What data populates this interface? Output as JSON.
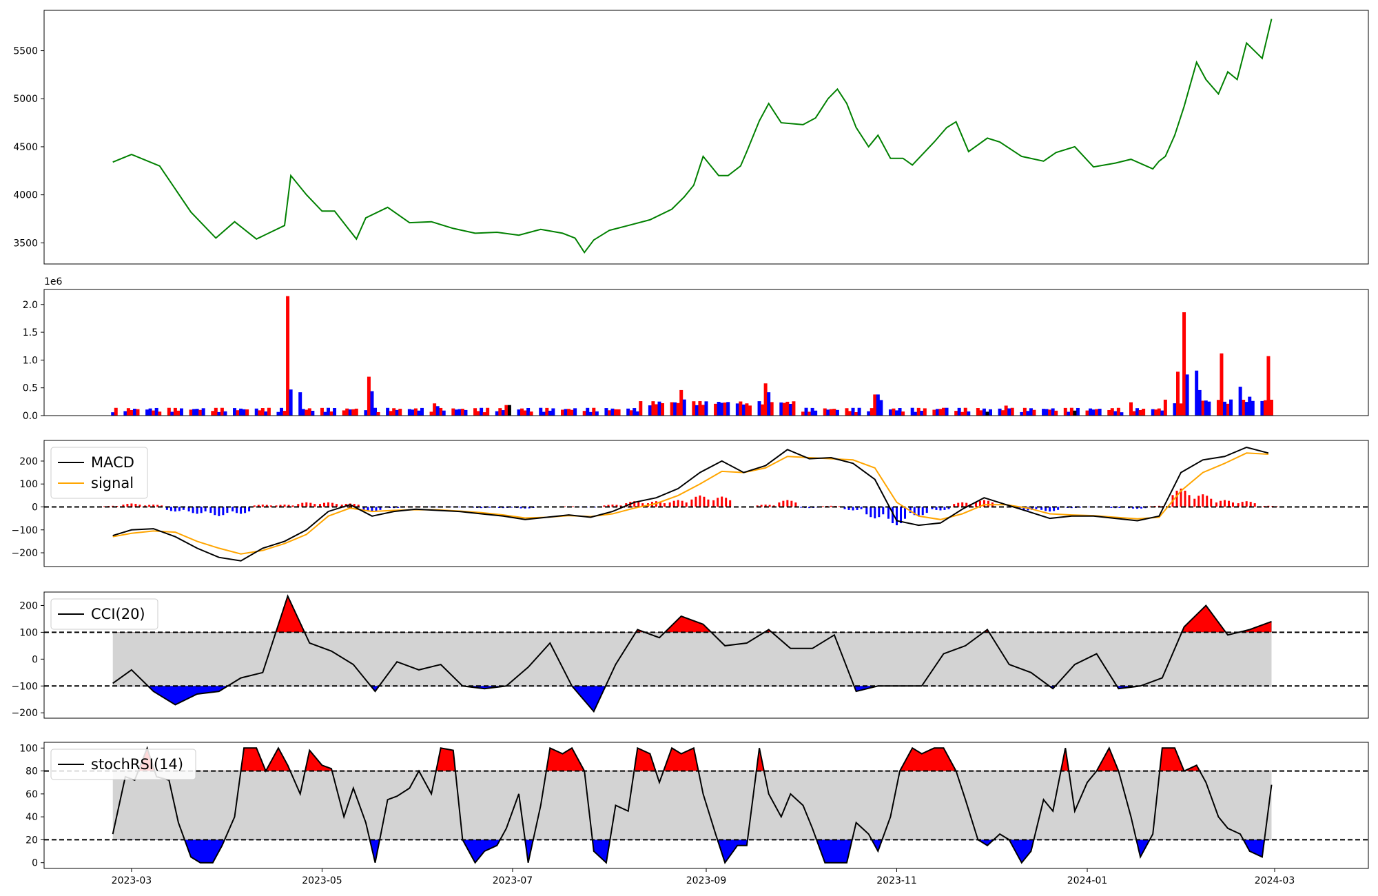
{
  "x_axis": {
    "ticks": [
      "2023-03",
      "2023-05",
      "2023-07",
      "2023-09",
      "2023-11",
      "2024-01",
      "2024-03"
    ],
    "tick_dates": [
      "2023-03-01",
      "2023-05-01",
      "2023-07-01",
      "2023-09-01",
      "2023-11-01",
      "2024-01-01",
      "2024-03-01"
    ],
    "range": [
      "2023-02-01",
      "2024-03-31"
    ]
  },
  "colors": {
    "price": "#008000",
    "up": "#ff0000",
    "down": "#0000ff",
    "flat": "#000000",
    "line": "#000000",
    "signal": "#ffa500",
    "band": "#d3d3d3"
  },
  "chart_data": [
    {
      "name": "price",
      "type": "line",
      "ylim": [
        3280,
        5920
      ],
      "yticks": [
        "3500",
        "4000",
        "4500",
        "5000",
        "5500"
      ],
      "ytick_values": [
        3500,
        4000,
        4500,
        5000,
        5500
      ],
      "dates": [
        "2023-02-23",
        "2023-03-01",
        "2023-03-10",
        "2023-03-20",
        "2023-03-28",
        "2023-04-03",
        "2023-04-10",
        "2023-04-19",
        "2023-04-21",
        "2023-04-26",
        "2023-05-01",
        "2023-05-05",
        "2023-05-12",
        "2023-05-15",
        "2023-05-22",
        "2023-05-29",
        "2023-06-05",
        "2023-06-12",
        "2023-06-19",
        "2023-06-26",
        "2023-07-03",
        "2023-07-10",
        "2023-07-17",
        "2023-07-21",
        "2023-07-24",
        "2023-07-27",
        "2023-08-01",
        "2023-08-07",
        "2023-08-14",
        "2023-08-21",
        "2023-08-25",
        "2023-08-28",
        "2023-08-31",
        "2023-09-05",
        "2023-09-08",
        "2023-09-12",
        "2023-09-14",
        "2023-09-18",
        "2023-09-21",
        "2023-09-25",
        "2023-10-02",
        "2023-10-06",
        "2023-10-10",
        "2023-10-13",
        "2023-10-16",
        "2023-10-19",
        "2023-10-23",
        "2023-10-26",
        "2023-10-30",
        "2023-11-03",
        "2023-11-06",
        "2023-11-13",
        "2023-11-17",
        "2023-11-20",
        "2023-11-24",
        "2023-11-30",
        "2023-12-04",
        "2023-12-11",
        "2023-12-18",
        "2023-12-22",
        "2023-12-28",
        "2024-01-03",
        "2024-01-10",
        "2024-01-15",
        "2024-01-22",
        "2024-01-24",
        "2024-01-26",
        "2024-01-29",
        "2024-02-01",
        "2024-02-05",
        "2024-02-08",
        "2024-02-12",
        "2024-02-15",
        "2024-02-18",
        "2024-02-21",
        "2024-02-26",
        "2024-02-29"
      ],
      "values": [
        4340,
        4420,
        4300,
        3820,
        3550,
        3720,
        3540,
        3680,
        4200,
        4000,
        3830,
        3830,
        3540,
        3760,
        3870,
        3710,
        3720,
        3650,
        3600,
        3610,
        3580,
        3640,
        3600,
        3550,
        3400,
        3530,
        3630,
        3680,
        3740,
        3850,
        3980,
        4100,
        4400,
        4200,
        4200,
        4300,
        4450,
        4770,
        4950,
        4750,
        4730,
        4800,
        5000,
        5100,
        4950,
        4700,
        4500,
        4620,
        4380,
        4380,
        4310,
        4550,
        4700,
        4760,
        4450,
        4590,
        4550,
        4400,
        4350,
        4440,
        4500,
        4290,
        4330,
        4370,
        4270,
        4350,
        4400,
        4620,
        4920,
        5380,
        5200,
        5050,
        5280,
        5200,
        5580,
        5420,
        5830
      ]
    },
    {
      "name": "volume",
      "type": "bar",
      "offset_label": "1e6",
      "ylim": [
        0,
        2.27
      ],
      "yticks": [
        "0.0",
        "0.5",
        "1.0",
        "1.5",
        "2.0"
      ],
      "ytick_values": [
        0,
        0.5,
        1.0,
        1.5,
        2.0
      ],
      "series": [
        {
          "dates": [
            "2023-04-20",
            "2023-05-16",
            "2023-06-06",
            "2023-06-29",
            "2023-08-24",
            "2023-09-14",
            "2023-09-20",
            "2023-10-25",
            "2023-11-16",
            "2023-12-06",
            "2024-01-15",
            "2024-01-30",
            "2024-02-01",
            "2024-02-13",
            "2024-02-28"
          ],
          "values": [
            2.15,
            0.7,
            0.22,
            0.19,
            0.46,
            0.22,
            0.58,
            0.38,
            0.14,
            0.18,
            0.24,
            0.79,
            1.86,
            1.12,
            1.07
          ]
        },
        {
          "dates": [
            "2023-04-21",
            "2023-04-24",
            "2023-05-17",
            "2023-06-07",
            "2023-08-25",
            "2023-09-21",
            "2023-10-26",
            "2023-10-27",
            "2023-11-17",
            "2023-12-07",
            "2024-02-02",
            "2024-02-05",
            "2024-02-06",
            "2024-02-14",
            "2024-02-19",
            "2024-02-22"
          ],
          "values": [
            0.47,
            0.42,
            0.44,
            0.17,
            0.29,
            0.42,
            0.38,
            0.28,
            0.14,
            0.13,
            0.74,
            0.81,
            0.46,
            0.25,
            0.52,
            0.34
          ]
        },
        {
          "dates": [
            "2023-06-30",
            "2023-11-30",
            "2023-12-28"
          ],
          "values": [
            0.19,
            0.07,
            0.09
          ]
        }
      ]
    },
    {
      "name": "macd",
      "type": "line",
      "ylim": [
        -260,
        290
      ],
      "yticks": [
        "−200",
        "−100",
        "0",
        "100",
        "200"
      ],
      "ytick_values": [
        -200,
        -100,
        0,
        100,
        200
      ],
      "legend": [
        "MACD",
        "signal"
      ],
      "dates": [
        "2023-02-23",
        "2023-03-01",
        "2023-03-08",
        "2023-03-15",
        "2023-03-22",
        "2023-03-29",
        "2023-04-05",
        "2023-04-12",
        "2023-04-19",
        "2023-04-26",
        "2023-05-03",
        "2023-05-10",
        "2023-05-17",
        "2023-05-24",
        "2023-05-31",
        "2023-06-07",
        "2023-06-14",
        "2023-06-21",
        "2023-06-28",
        "2023-07-05",
        "2023-07-12",
        "2023-07-19",
        "2023-07-26",
        "2023-08-02",
        "2023-08-09",
        "2023-08-16",
        "2023-08-23",
        "2023-08-30",
        "2023-09-06",
        "2023-09-13",
        "2023-09-20",
        "2023-09-27",
        "2023-10-04",
        "2023-10-11",
        "2023-10-18",
        "2023-10-25",
        "2023-11-01",
        "2023-11-08",
        "2023-11-15",
        "2023-11-22",
        "2023-11-29",
        "2023-12-06",
        "2023-12-13",
        "2023-12-20",
        "2023-12-27",
        "2024-01-03",
        "2024-01-10",
        "2024-01-17",
        "2024-01-24",
        "2024-01-31",
        "2024-02-07",
        "2024-02-14",
        "2024-02-21",
        "2024-02-28"
      ],
      "series": [
        {
          "name": "MACD",
          "values": [
            -125,
            -100,
            -95,
            -130,
            -180,
            -220,
            -235,
            -180,
            -150,
            -100,
            -20,
            10,
            -40,
            -20,
            -10,
            -15,
            -20,
            -30,
            -40,
            -55,
            -45,
            -35,
            -45,
            -20,
            20,
            40,
            80,
            150,
            200,
            150,
            180,
            250,
            210,
            215,
            190,
            120,
            -60,
            -80,
            -70,
            -10,
            40,
            10,
            -20,
            -50,
            -40,
            -40,
            -50,
            -60,
            -40,
            150,
            205,
            220,
            260,
            235
          ]
        },
        {
          "name": "signal",
          "values": [
            -130,
            -115,
            -105,
            -110,
            -150,
            -180,
            -205,
            -190,
            -160,
            -120,
            -40,
            -5,
            -20,
            -15,
            -12,
            -13,
            -18,
            -25,
            -35,
            -48,
            -45,
            -38,
            -42,
            -30,
            -5,
            15,
            50,
            100,
            155,
            150,
            170,
            220,
            215,
            210,
            205,
            170,
            20,
            -40,
            -55,
            -30,
            10,
            10,
            -5,
            -30,
            -35,
            -38,
            -45,
            -52,
            -45,
            70,
            150,
            190,
            235,
            230
          ]
        },
        {
          "name": "histogram",
          "values": [
            5,
            15,
            10,
            -20,
            -30,
            -40,
            -30,
            10,
            10,
            20,
            20,
            15,
            -20,
            -5,
            2,
            -2,
            -2,
            -5,
            -5,
            -7,
            0,
            3,
            -3,
            10,
            25,
            25,
            30,
            50,
            45,
            0,
            10,
            30,
            -5,
            5,
            -15,
            -50,
            -80,
            -40,
            -15,
            20,
            30,
            0,
            -15,
            -20,
            -5,
            -2,
            -5,
            -8,
            5,
            80,
            55,
            30,
            25,
            5
          ]
        }
      ]
    },
    {
      "name": "cci",
      "type": "line",
      "ylim": [
        -220,
        250
      ],
      "yticks": [
        "−200",
        "−100",
        "0",
        "100",
        "200"
      ],
      "ytick_values": [
        -200,
        -100,
        0,
        100,
        200
      ],
      "thresholds": [
        100,
        -100
      ],
      "legend": [
        "CCI(20)"
      ],
      "dates": [
        "2023-02-23",
        "2023-03-01",
        "2023-03-08",
        "2023-03-15",
        "2023-03-22",
        "2023-03-29",
        "2023-04-05",
        "2023-04-12",
        "2023-04-20",
        "2023-04-27",
        "2023-05-04",
        "2023-05-11",
        "2023-05-18",
        "2023-05-25",
        "2023-06-01",
        "2023-06-08",
        "2023-06-15",
        "2023-06-22",
        "2023-06-29",
        "2023-07-06",
        "2023-07-13",
        "2023-07-20",
        "2023-07-27",
        "2023-08-03",
        "2023-08-10",
        "2023-08-17",
        "2023-08-24",
        "2023-08-31",
        "2023-09-07",
        "2023-09-14",
        "2023-09-21",
        "2023-09-28",
        "2023-10-05",
        "2023-10-12",
        "2023-10-19",
        "2023-10-26",
        "2023-11-02",
        "2023-11-09",
        "2023-11-16",
        "2023-11-23",
        "2023-11-30",
        "2023-12-07",
        "2023-12-14",
        "2023-12-21",
        "2023-12-28",
        "2024-01-04",
        "2024-01-11",
        "2024-01-18",
        "2024-01-25",
        "2024-02-01",
        "2024-02-08",
        "2024-02-15",
        "2024-02-22",
        "2024-02-29"
      ],
      "values": [
        -90,
        -40,
        -120,
        -170,
        -130,
        -120,
        -70,
        -50,
        235,
        60,
        30,
        -20,
        -120,
        -10,
        -40,
        -20,
        -100,
        -110,
        -100,
        -30,
        60,
        -100,
        -195,
        -20,
        110,
        80,
        160,
        130,
        50,
        60,
        110,
        40,
        40,
        90,
        -120,
        -100,
        -100,
        -100,
        20,
        50,
        110,
        -20,
        -50,
        -110,
        -20,
        20,
        -110,
        -100,
        -70,
        120,
        200,
        90,
        110,
        140
      ]
    },
    {
      "name": "stochrsi",
      "type": "line",
      "ylim": [
        -5,
        105
      ],
      "yticks": [
        "0",
        "20",
        "40",
        "60",
        "80",
        "100"
      ],
      "ytick_values": [
        0,
        20,
        40,
        60,
        80,
        100
      ],
      "thresholds": [
        80,
        20
      ],
      "legend": [
        "stochRSI(14)"
      ],
      "dates": [
        "2023-02-23",
        "2023-02-27",
        "2023-03-02",
        "2023-03-06",
        "2023-03-09",
        "2023-03-13",
        "2023-03-16",
        "2023-03-20",
        "2023-03-23",
        "2023-03-27",
        "2023-03-30",
        "2023-04-03",
        "2023-04-06",
        "2023-04-10",
        "2023-04-13",
        "2023-04-17",
        "2023-04-20",
        "2023-04-24",
        "2023-04-27",
        "2023-05-01",
        "2023-05-04",
        "2023-05-08",
        "2023-05-11",
        "2023-05-15",
        "2023-05-18",
        "2023-05-22",
        "2023-05-25",
        "2023-05-29",
        "2023-06-01",
        "2023-06-05",
        "2023-06-08",
        "2023-06-12",
        "2023-06-15",
        "2023-06-19",
        "2023-06-22",
        "2023-06-26",
        "2023-06-29",
        "2023-07-03",
        "2023-07-06",
        "2023-07-10",
        "2023-07-13",
        "2023-07-17",
        "2023-07-20",
        "2023-07-24",
        "2023-07-27",
        "2023-07-31",
        "2023-08-03",
        "2023-08-07",
        "2023-08-10",
        "2023-08-14",
        "2023-08-17",
        "2023-08-21",
        "2023-08-24",
        "2023-08-28",
        "2023-08-31",
        "2023-09-04",
        "2023-09-07",
        "2023-09-11",
        "2023-09-14",
        "2023-09-18",
        "2023-09-21",
        "2023-09-25",
        "2023-09-28",
        "2023-10-02",
        "2023-10-05",
        "2023-10-09",
        "2023-10-12",
        "2023-10-16",
        "2023-10-19",
        "2023-10-23",
        "2023-10-26",
        "2023-10-30",
        "2023-11-02",
        "2023-11-06",
        "2023-11-09",
        "2023-11-13",
        "2023-11-16",
        "2023-11-20",
        "2023-11-23",
        "2023-11-27",
        "2023-11-30",
        "2023-12-04",
        "2023-12-07",
        "2023-12-11",
        "2023-12-14",
        "2023-12-18",
        "2023-12-21",
        "2023-12-25",
        "2023-12-28",
        "2024-01-01",
        "2024-01-04",
        "2024-01-08",
        "2024-01-11",
        "2024-01-15",
        "2024-01-18",
        "2024-01-22",
        "2024-01-25",
        "2024-01-29",
        "2024-02-01",
        "2024-02-05",
        "2024-02-08",
        "2024-02-12",
        "2024-02-15",
        "2024-02-19",
        "2024-02-22",
        "2024-02-26",
        "2024-02-29"
      ],
      "values": [
        25,
        75,
        72,
        100,
        75,
        72,
        35,
        5,
        0,
        0,
        15,
        40,
        100,
        100,
        80,
        100,
        85,
        60,
        98,
        85,
        82,
        40,
        65,
        35,
        0,
        55,
        58,
        65,
        80,
        60,
        100,
        98,
        20,
        0,
        10,
        15,
        30,
        60,
        0,
        50,
        100,
        95,
        100,
        80,
        10,
        0,
        50,
        45,
        100,
        95,
        70,
        100,
        95,
        100,
        60,
        25,
        0,
        15,
        15,
        100,
        60,
        40,
        60,
        50,
        30,
        0,
        0,
        0,
        35,
        25,
        10,
        40,
        80,
        100,
        95,
        100,
        100,
        80,
        55,
        20,
        15,
        25,
        20,
        0,
        10,
        55,
        45,
        100,
        45,
        70,
        80,
        100,
        80,
        40,
        5,
        25,
        100,
        100,
        80,
        85,
        70,
        40,
        30,
        25,
        10,
        5,
        68
      ]
    }
  ]
}
